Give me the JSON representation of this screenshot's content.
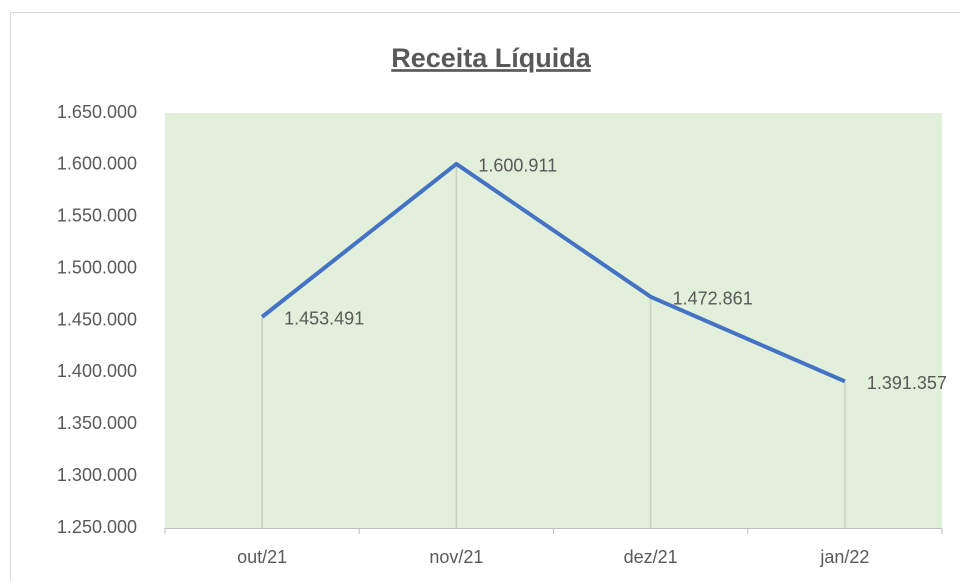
{
  "chart_data": {
    "type": "line",
    "title": "Receita  Líquida",
    "categories": [
      "out/21",
      "nov/21",
      "dez/21",
      "jan/22"
    ],
    "series": [
      {
        "name": "Receita Líquida",
        "color": "#4472c4",
        "values": [
          1453491,
          1600911,
          1472861,
          1391357
        ],
        "value_labels": [
          "1.453.491",
          "1.600.911",
          "1.472.861",
          "1.391.357"
        ]
      }
    ],
    "ylim": [
      1250000,
      1650000
    ],
    "yticks": [
      {
        "value": 1250000,
        "label": "1.250.000"
      },
      {
        "value": 1300000,
        "label": "1.300.000"
      },
      {
        "value": 1350000,
        "label": "1.350.000"
      },
      {
        "value": 1400000,
        "label": "1.400.000"
      },
      {
        "value": 1450000,
        "label": "1.450.000"
      },
      {
        "value": 1500000,
        "label": "1.500.000"
      },
      {
        "value": 1550000,
        "label": "1.550.000"
      },
      {
        "value": 1600000,
        "label": "1.600.000"
      },
      {
        "value": 1650000,
        "label": "1.650.000"
      }
    ],
    "plot_background": "#e2efda",
    "drop_lines": true
  }
}
